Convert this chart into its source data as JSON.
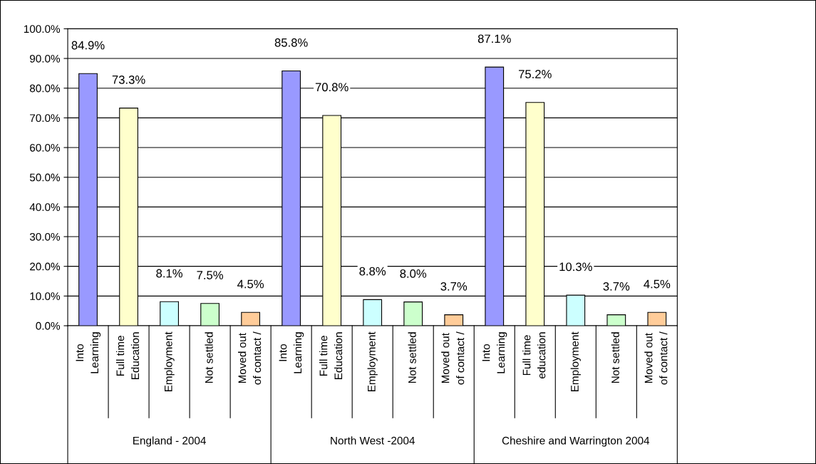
{
  "chart_data": {
    "type": "bar",
    "categories": [
      "Into\nLearning",
      "Full time\nEducation",
      "Employment",
      "Not settled",
      "Moved out\nof contact /",
      "Into\nLearning",
      "Full time\nEducation",
      "Employment",
      "Not settled",
      "Moved out\nof contact /",
      "Into\nLearning",
      "Full time\neducation",
      "Employment",
      "Not settled",
      "Moved out\nof contact /"
    ],
    "values": [
      84.9,
      73.3,
      8.1,
      7.5,
      4.5,
      85.8,
      70.8,
      8.8,
      8.0,
      3.7,
      87.1,
      75.2,
      10.3,
      3.7,
      4.5
    ],
    "value_labels": [
      "84.9%",
      "73.3%",
      "8.1%",
      "7.5%",
      "4.5%",
      "85.8%",
      "70.8%",
      "8.8%",
      "8.0%",
      "3.7%",
      "87.1%",
      "75.2%",
      "10.3%",
      "3.7%",
      "4.5%"
    ],
    "colors": [
      "#9999ff",
      "#ffffcc",
      "#ccffff",
      "#ccffcc",
      "#ffcc99",
      "#9999ff",
      "#ffffcc",
      "#ccffff",
      "#ccffcc",
      "#ffcc99",
      "#9999ff",
      "#ffffcc",
      "#ccffff",
      "#ccffcc",
      "#ffcc99"
    ],
    "annotations": [
      "England - 2004",
      "North West -2004",
      "Cheshire and Warrington 2004"
    ],
    "ylim": [
      0,
      100
    ],
    "yticks": [
      {
        "value": 0,
        "label": "0.0%"
      },
      {
        "value": 10,
        "label": "10.0%"
      },
      {
        "value": 20,
        "label": "20.0%"
      },
      {
        "value": 30,
        "label": "30.0%"
      },
      {
        "value": 40,
        "label": "40.0%"
      },
      {
        "value": 50,
        "label": "50.0%"
      },
      {
        "value": 60,
        "label": "60.0%"
      },
      {
        "value": 70,
        "label": "70.0%"
      },
      {
        "value": 80,
        "label": "80.0%"
      },
      {
        "value": 90,
        "label": "90.0%"
      },
      {
        "value": 100,
        "label": "100.0%"
      }
    ],
    "grid": "y",
    "legend": false
  }
}
